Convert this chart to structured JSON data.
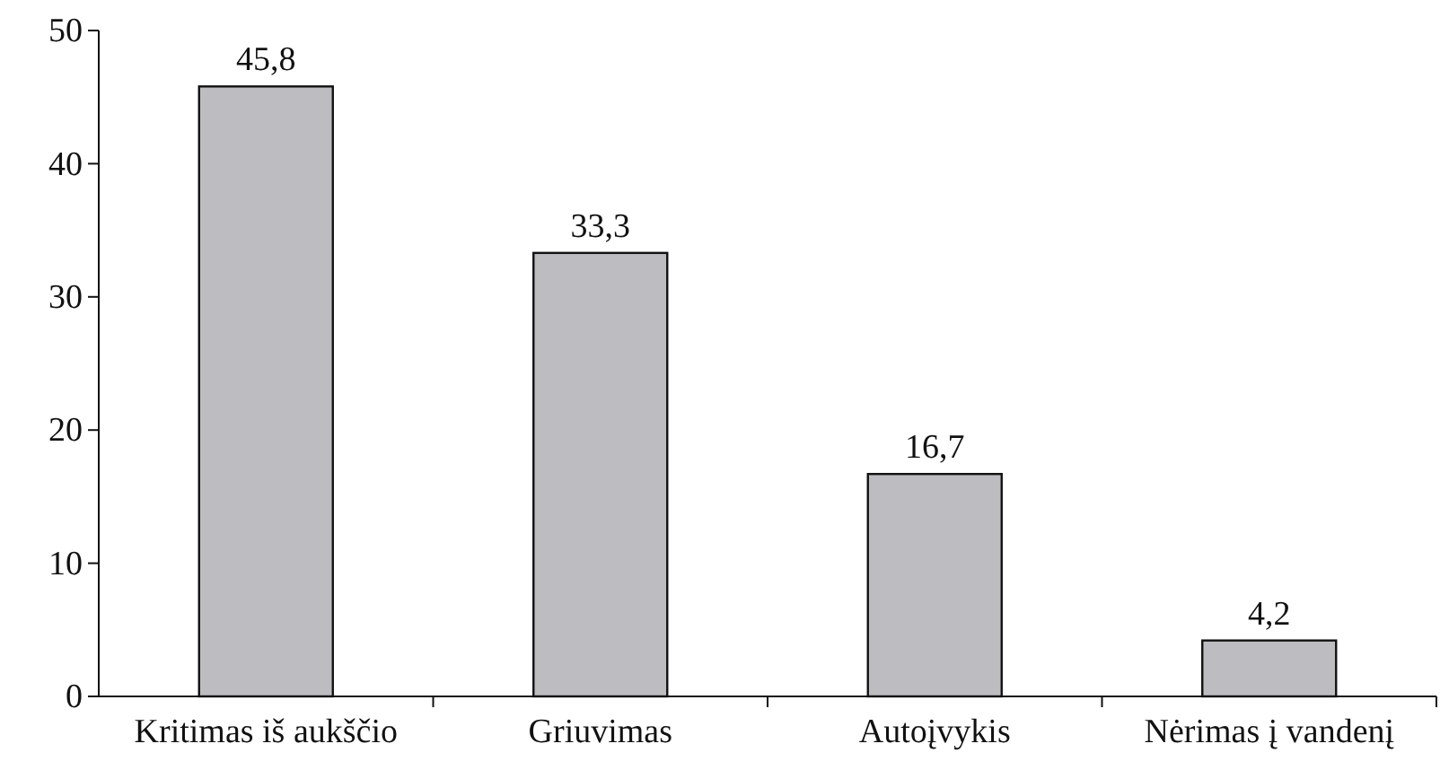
{
  "chart_data": {
    "type": "bar",
    "categories": [
      "Kritimas iš aukščio",
      "Griuvimas",
      "Autoįvykis",
      "Nėrimas į vandenį"
    ],
    "values": [
      45.8,
      33.3,
      16.7,
      4.2
    ],
    "value_labels": [
      "45,8",
      "33,3",
      "16,7",
      "4,2"
    ],
    "color": "#bdbdc1",
    "ylim": [
      0,
      50
    ],
    "yticks": [
      0,
      10,
      20,
      30,
      40,
      50
    ],
    "grid": false
  }
}
